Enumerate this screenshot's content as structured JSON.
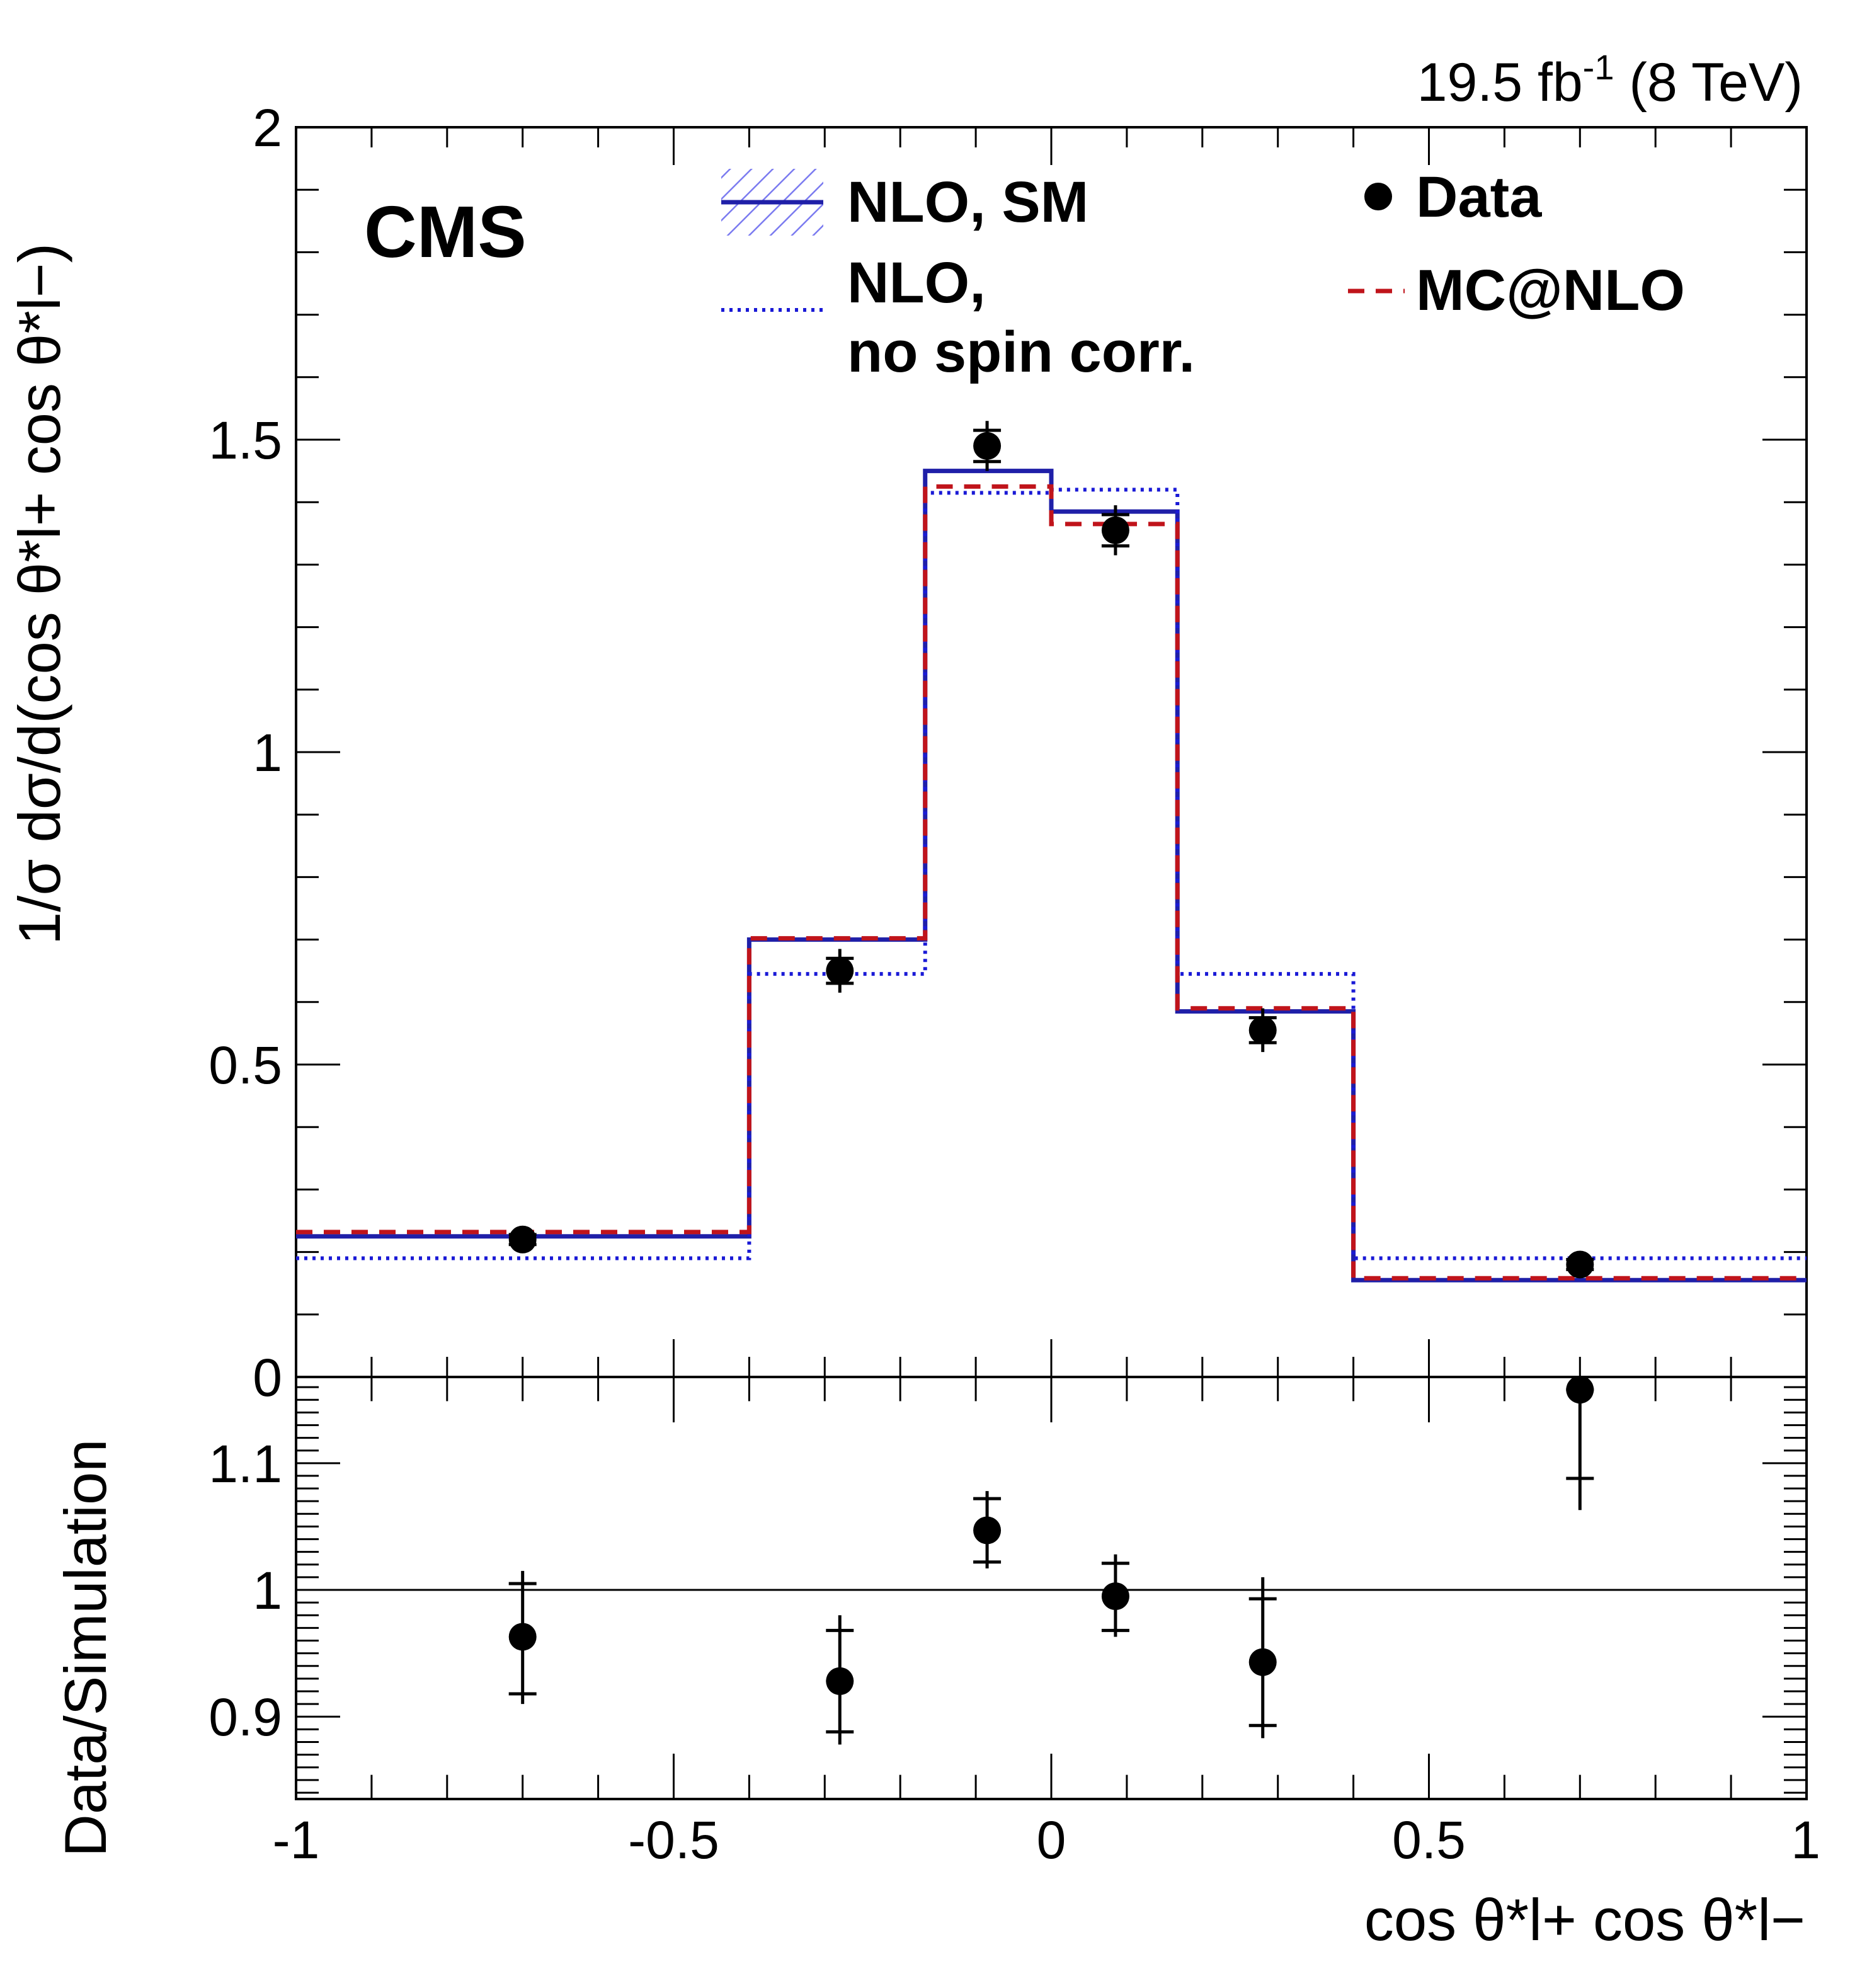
{
  "chart_data": [
    {
      "type": "histogram",
      "panel": "main",
      "bin_edges": [
        -1,
        -0.4,
        -0.167,
        0,
        0.167,
        0.4,
        1
      ],
      "x": [
        -0.7,
        -0.28,
        -0.085,
        0.085,
        0.28,
        0.7
      ],
      "xlim": [
        -1,
        1
      ],
      "ylim": [
        0,
        2
      ],
      "ylabel": "1/σ dσ/d(cos θ*l+ cos θ*l−)",
      "yticks": [
        "0",
        "0.5",
        "1",
        "1.5",
        "2"
      ],
      "cms_label": "CMS",
      "lumi": {
        "value": "19.5 fb",
        "sup": "-1",
        "energy": " (8 TeV)"
      },
      "series": [
        {
          "name": "NLO, SM",
          "style": "solid",
          "color": "#1f1fa8",
          "values": [
            0.225,
            0.7,
            1.45,
            1.385,
            0.585,
            0.155
          ]
        },
        {
          "name": "NLO, no spin corr.",
          "style": "dotted",
          "color": "#1a1ad6",
          "values": [
            0.19,
            0.645,
            1.415,
            1.42,
            0.645,
            0.19
          ]
        },
        {
          "name": "MC@NLO",
          "style": "dashed",
          "color": "#c0141b",
          "values": [
            0.232,
            0.702,
            1.425,
            1.365,
            0.59,
            0.158
          ]
        },
        {
          "name": "Data",
          "style": "points",
          "color": "#000000",
          "values": [
            0.22,
            0.65,
            1.49,
            1.355,
            0.555,
            0.18
          ],
          "err_stat": [
            0.008,
            0.02,
            0.025,
            0.025,
            0.02,
            0.008
          ],
          "err_tot": [
            0.012,
            0.035,
            0.04,
            0.04,
            0.035,
            0.012
          ]
        }
      ],
      "legend": {
        "left": [
          {
            "label": "NLO, SM",
            "line2": ""
          },
          {
            "label": "NLO,",
            "line2": "no spin corr."
          }
        ],
        "right": [
          {
            "label": "Data"
          },
          {
            "label": "MC@NLO"
          }
        ]
      }
    },
    {
      "type": "scatter",
      "panel": "ratio",
      "x": [
        -0.7,
        -0.28,
        -0.085,
        0.085,
        0.28,
        0.7
      ],
      "values": [
        0.963,
        0.928,
        1.047,
        0.995,
        0.943,
        1.158
      ],
      "err_stat_lo": [
        0.918,
        0.888,
        1.022,
        0.968,
        0.893,
        1.088
      ],
      "err_stat_hi": [
        1.005,
        0.968,
        1.072,
        1.021,
        0.993,
        1.158
      ],
      "err_tot_lo": [
        0.91,
        0.878,
        1.017,
        0.963,
        0.883,
        1.063
      ],
      "err_tot_hi": [
        1.015,
        0.98,
        1.078,
        1.028,
        1.01,
        1.158
      ],
      "reference_line": 1,
      "xlim": [
        -1,
        1
      ],
      "ylim": [
        0.835,
        1.168
      ],
      "ylabel": "Data/Simulation",
      "yticks": [
        "0.9",
        "1",
        "1.1"
      ],
      "xlabel": "cos θ*l+ cos θ*l−",
      "xticks": [
        "-1",
        "-0.5",
        "0",
        "0.5",
        "1"
      ]
    }
  ]
}
